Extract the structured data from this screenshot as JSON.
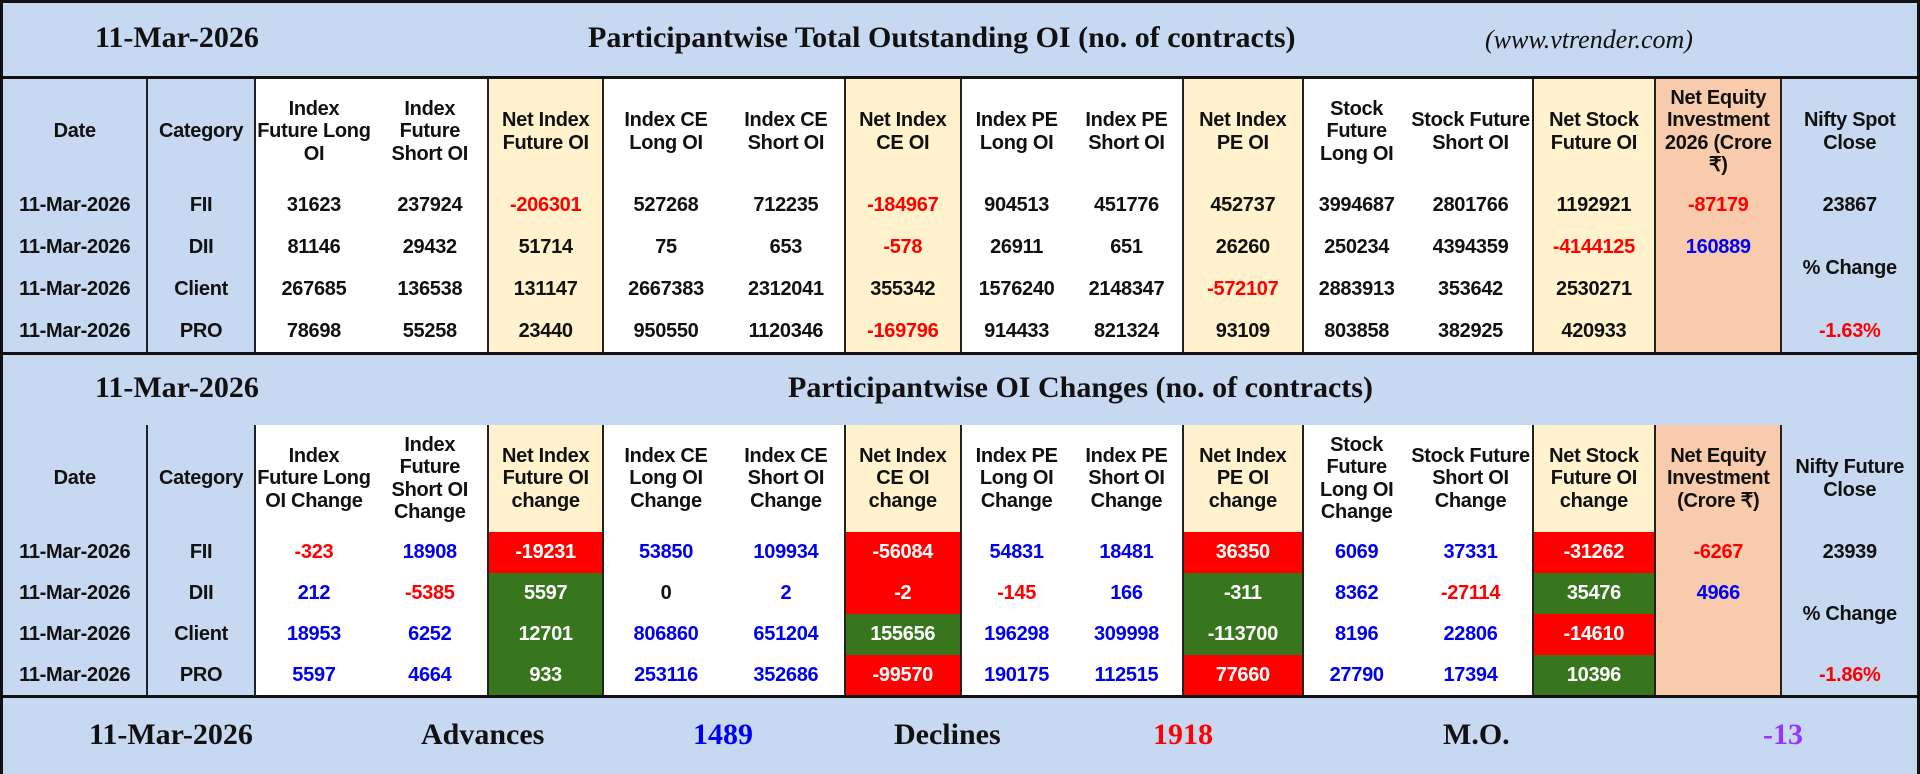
{
  "colors": {
    "band": "#c6d9f1",
    "cream": "#fff2cc",
    "orange": "#f8cbad",
    "red_bg": "#ff0000",
    "green_bg": "#38761d",
    "blue_text": "#0000ee",
    "red_text": "#ff0000",
    "purple_text": "#9933ff"
  },
  "section1": {
    "date": "11-Mar-2026",
    "title": "Participantwise Total Outstanding OI (no. of contracts)",
    "site": "(www.vtrender.com)"
  },
  "section2": {
    "date": "11-Mar-2026",
    "title": "Participantwise OI Changes (no. of contracts)"
  },
  "summary": {
    "date": "11-Mar-2026",
    "advances_label": "Advances",
    "advances": "1489",
    "declines_label": "Declines",
    "declines": "1918",
    "mo_label": "M.O.",
    "mo": "-13"
  },
  "table1": {
    "headers": [
      "Date",
      "Category",
      "Index Future Long OI",
      "Index Future Short OI",
      "Net Index Future OI",
      "Index CE Long OI",
      "Index CE Short OI",
      "Net Index CE OI",
      "Index PE Long OI",
      "Index PE Short OI",
      "Net Index PE OI",
      "Stock Future Long OI",
      "Stock Future Short OI",
      "Net Stock Future OI",
      "Net Equity Investment 2026 (Crore ₹)",
      "Nifty Spot Close"
    ],
    "rows": [
      {
        "cells": [
          {
            "v": "11-Mar-2026"
          },
          {
            "v": "FII"
          },
          {
            "v": "31623"
          },
          {
            "v": "237924"
          },
          {
            "v": "-206301",
            "c": "#ff0000"
          },
          {
            "v": "527268"
          },
          {
            "v": "712235"
          },
          {
            "v": "-184967",
            "c": "#ff0000"
          },
          {
            "v": "904513"
          },
          {
            "v": "451776"
          },
          {
            "v": "452737"
          },
          {
            "v": "3994687"
          },
          {
            "v": "2801766"
          },
          {
            "v": "1192921"
          },
          {
            "v": "-87179",
            "c": "#ff0000"
          },
          {
            "v": "23867"
          }
        ]
      },
      {
        "cells": [
          {
            "v": "11-Mar-2026"
          },
          {
            "v": "DII"
          },
          {
            "v": "81146"
          },
          {
            "v": "29432"
          },
          {
            "v": "51714"
          },
          {
            "v": "75"
          },
          {
            "v": "653"
          },
          {
            "v": "-578",
            "c": "#ff0000"
          },
          {
            "v": "26911"
          },
          {
            "v": "651"
          },
          {
            "v": "26260"
          },
          {
            "v": "250234"
          },
          {
            "v": "4394359"
          },
          {
            "v": "-4144125",
            "c": "#ff0000"
          },
          {
            "v": "160889",
            "c": "#0000ee"
          },
          {
            "v": "% Change",
            "rowspan": 2
          }
        ]
      },
      {
        "cells": [
          {
            "v": "11-Mar-2026"
          },
          {
            "v": "Client"
          },
          {
            "v": "267685"
          },
          {
            "v": "136538"
          },
          {
            "v": "131147"
          },
          {
            "v": "2667383"
          },
          {
            "v": "2312041"
          },
          {
            "v": "355342"
          },
          {
            "v": "1576240"
          },
          {
            "v": "2148347"
          },
          {
            "v": "-572107",
            "c": "#ff0000"
          },
          {
            "v": "2883913"
          },
          {
            "v": "353642"
          },
          {
            "v": "2530271"
          },
          {
            "v": ""
          }
        ]
      },
      {
        "cells": [
          {
            "v": "11-Mar-2026"
          },
          {
            "v": "PRO"
          },
          {
            "v": "78698"
          },
          {
            "v": "55258"
          },
          {
            "v": "23440"
          },
          {
            "v": "950550"
          },
          {
            "v": "1120346"
          },
          {
            "v": "-169796",
            "c": "#ff0000"
          },
          {
            "v": "914433"
          },
          {
            "v": "821324"
          },
          {
            "v": "93109"
          },
          {
            "v": "803858"
          },
          {
            "v": "382925"
          },
          {
            "v": "420933"
          },
          {
            "v": ""
          },
          {
            "v": "-1.63%",
            "c": "#ff0000"
          }
        ]
      }
    ]
  },
  "table2": {
    "headers": [
      "Date",
      "Category",
      "Index Future Long OI Change",
      "Index Future Short OI Change",
      "Net Index Future OI change",
      "Index CE Long OI Change",
      "Index CE Short OI Change",
      "Net Index CE OI change",
      "Index PE Long OI Change",
      "Index PE Short OI Change",
      "Net Index PE OI change",
      "Stock Future Long OI Change",
      "Stock Future Short OI Change",
      "Net Stock Future OI change",
      "Net Equity Investment (Crore ₹)",
      "Nifty Future Close"
    ],
    "rows": [
      {
        "cells": [
          {
            "v": "11-Mar-2026"
          },
          {
            "v": "FII"
          },
          {
            "v": "-323",
            "c": "#ff0000"
          },
          {
            "v": "18908",
            "c": "#0000ee"
          },
          {
            "v": "-19231",
            "c": "#ffffff",
            "bg": "#ff0000"
          },
          {
            "v": "53850",
            "c": "#0000ee"
          },
          {
            "v": "109934",
            "c": "#0000ee"
          },
          {
            "v": "-56084",
            "c": "#ffffff",
            "bg": "#ff0000"
          },
          {
            "v": "54831",
            "c": "#0000ee"
          },
          {
            "v": "18481",
            "c": "#0000ee"
          },
          {
            "v": "36350",
            "c": "#ffffff",
            "bg": "#ff0000"
          },
          {
            "v": "6069",
            "c": "#0000ee"
          },
          {
            "v": "37331",
            "c": "#0000ee"
          },
          {
            "v": "-31262",
            "c": "#ffffff",
            "bg": "#ff0000"
          },
          {
            "v": "-6267",
            "c": "#ff0000"
          },
          {
            "v": "23939"
          }
        ]
      },
      {
        "cells": [
          {
            "v": "11-Mar-2026"
          },
          {
            "v": "DII"
          },
          {
            "v": "212",
            "c": "#0000ee"
          },
          {
            "v": "-5385",
            "c": "#ff0000"
          },
          {
            "v": "5597",
            "c": "#ffffff",
            "bg": "#38761d"
          },
          {
            "v": "0"
          },
          {
            "v": "2",
            "c": "#0000ee"
          },
          {
            "v": "-2",
            "c": "#ffffff",
            "bg": "#ff0000"
          },
          {
            "v": "-145",
            "c": "#ff0000"
          },
          {
            "v": "166",
            "c": "#0000ee"
          },
          {
            "v": "-311",
            "c": "#ffffff",
            "bg": "#38761d"
          },
          {
            "v": "8362",
            "c": "#0000ee"
          },
          {
            "v": "-27114",
            "c": "#ff0000"
          },
          {
            "v": "35476",
            "c": "#ffffff",
            "bg": "#38761d"
          },
          {
            "v": "4966",
            "c": "#0000ee"
          },
          {
            "v": "% Change",
            "rowspan": 2
          }
        ]
      },
      {
        "cells": [
          {
            "v": "11-Mar-2026"
          },
          {
            "v": "Client"
          },
          {
            "v": "18953",
            "c": "#0000ee"
          },
          {
            "v": "6252",
            "c": "#0000ee"
          },
          {
            "v": "12701",
            "c": "#ffffff",
            "bg": "#38761d"
          },
          {
            "v": "806860",
            "c": "#0000ee"
          },
          {
            "v": "651204",
            "c": "#0000ee"
          },
          {
            "v": "155656",
            "c": "#ffffff",
            "bg": "#38761d"
          },
          {
            "v": "196298",
            "c": "#0000ee"
          },
          {
            "v": "309998",
            "c": "#0000ee"
          },
          {
            "v": "-113700",
            "c": "#ffffff",
            "bg": "#38761d"
          },
          {
            "v": "8196",
            "c": "#0000ee"
          },
          {
            "v": "22806",
            "c": "#0000ee"
          },
          {
            "v": "-14610",
            "c": "#ffffff",
            "bg": "#ff0000"
          },
          {
            "v": ""
          }
        ]
      },
      {
        "cells": [
          {
            "v": "11-Mar-2026"
          },
          {
            "v": "PRO"
          },
          {
            "v": "5597",
            "c": "#0000ee"
          },
          {
            "v": "4664",
            "c": "#0000ee"
          },
          {
            "v": "933",
            "c": "#ffffff",
            "bg": "#38761d"
          },
          {
            "v": "253116",
            "c": "#0000ee"
          },
          {
            "v": "352686",
            "c": "#0000ee"
          },
          {
            "v": "-99570",
            "c": "#ffffff",
            "bg": "#ff0000"
          },
          {
            "v": "190175",
            "c": "#0000ee"
          },
          {
            "v": "112515",
            "c": "#0000ee"
          },
          {
            "v": "77660",
            "c": "#ffffff",
            "bg": "#ff0000"
          },
          {
            "v": "27790",
            "c": "#0000ee"
          },
          {
            "v": "17394",
            "c": "#0000ee"
          },
          {
            "v": "10396",
            "c": "#ffffff",
            "bg": "#38761d"
          },
          {
            "v": ""
          },
          {
            "v": "-1.86%",
            "c": "#ff0000"
          }
        ]
      }
    ]
  }
}
